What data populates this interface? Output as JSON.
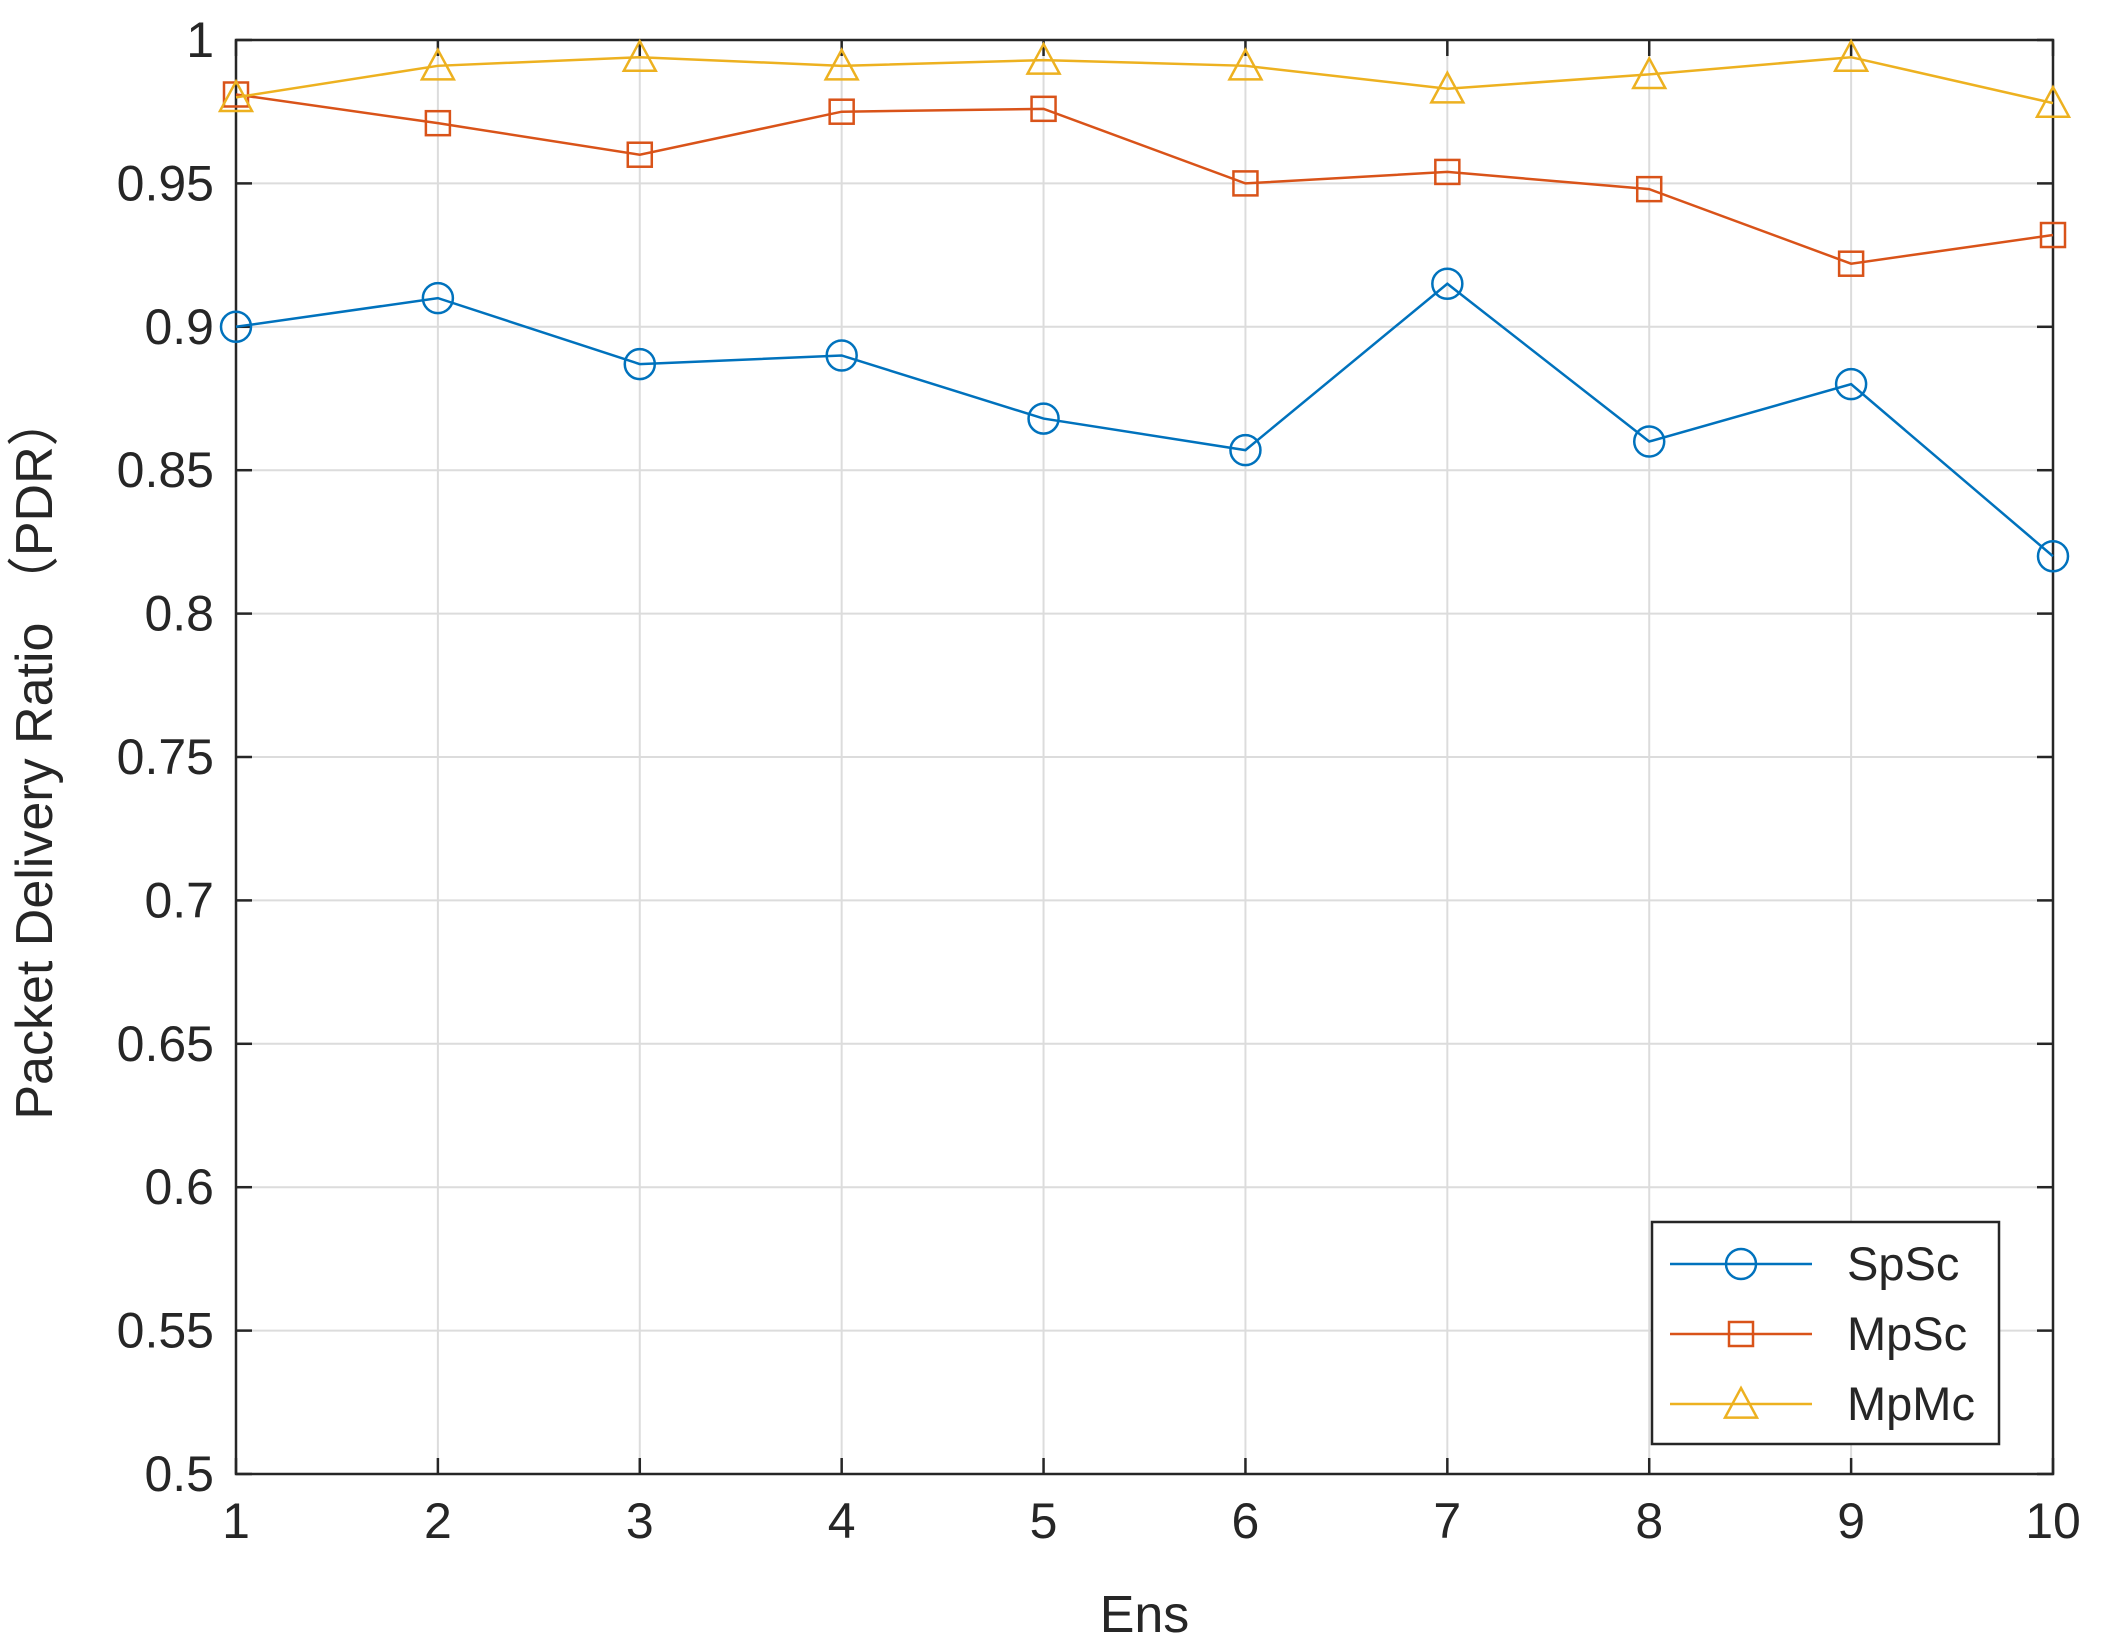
{
  "chart_data": {
    "type": "line",
    "title": "",
    "xlabel": "Ens",
    "ylabel": "Packet Delivery Ratio （PDR）",
    "x": [
      1,
      2,
      3,
      4,
      5,
      6,
      7,
      8,
      9,
      10
    ],
    "xlim": [
      1,
      10
    ],
    "ylim": [
      0.5,
      1
    ],
    "xticks": [
      "1",
      "2",
      "3",
      "4",
      "5",
      "6",
      "7",
      "8",
      "9",
      "10"
    ],
    "yticks": [
      0.5,
      0.55,
      0.6,
      0.65,
      0.7,
      0.75,
      0.8,
      0.85,
      0.9,
      0.95,
      1
    ],
    "ytick_labels": [
      "0.5",
      "0.55",
      "0.6",
      "0.65",
      "0.7",
      "0.75",
      "0.8",
      "0.85",
      "0.9",
      "0.95",
      "1"
    ],
    "grid": true,
    "legend_position": "bottom-right",
    "series": [
      {
        "name": "SpSc",
        "color": "#0072BD",
        "marker": "circle",
        "values": [
          0.9,
          0.91,
          0.887,
          0.89,
          0.868,
          0.857,
          0.915,
          0.86,
          0.88,
          0.82
        ]
      },
      {
        "name": "MpSc",
        "color": "#D95319",
        "marker": "square",
        "values": [
          0.981,
          0.971,
          0.96,
          0.975,
          0.976,
          0.95,
          0.954,
          0.948,
          0.922,
          0.932
        ]
      },
      {
        "name": "MpMc",
        "color": "#EDB120",
        "marker": "triangle",
        "values": [
          0.98,
          0.991,
          0.994,
          0.991,
          0.993,
          0.991,
          0.983,
          0.988,
          0.994,
          0.978
        ]
      }
    ]
  }
}
